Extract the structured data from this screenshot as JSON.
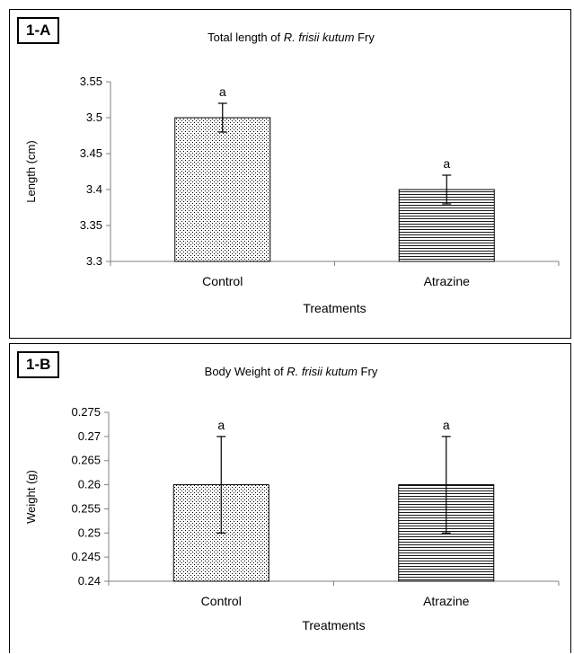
{
  "colors": {
    "background": "#ffffff",
    "axis": "#808080",
    "bar_stroke": "#000000",
    "pattern": "#000000"
  },
  "chart_data": [
    {
      "type": "bar",
      "panel_label": "1-A",
      "title_pre": "Total length of ",
      "title_species": "R. frisii kutum",
      "title_post": " Fry",
      "xlabel": "Treatments",
      "ylabel": "Length (cm)",
      "ylim": [
        3.3,
        3.55
      ],
      "yticks": [
        "3.3",
        "3.35",
        "3.4",
        "3.45",
        "3.5",
        "3.55"
      ],
      "categories": [
        "Control",
        "Atrazine"
      ],
      "values": [
        3.5,
        3.4
      ],
      "errors": [
        0.02,
        0.02
      ],
      "annotations": [
        "a",
        "a"
      ],
      "patterns": [
        "dots",
        "hlines"
      ],
      "grid": false,
      "legend": "none"
    },
    {
      "type": "bar",
      "panel_label": "1-B",
      "title_pre": "Body Weight of ",
      "title_species": "R. frisii kutum",
      "title_post": " Fry",
      "xlabel": "Treatments",
      "ylabel": "Weight (g)",
      "ylim": [
        0.24,
        0.275
      ],
      "yticks": [
        "0.24",
        "0.245",
        "0.25",
        "0.255",
        "0.26",
        "0.265",
        "0.27",
        "0.275"
      ],
      "categories": [
        "Control",
        "Atrazine"
      ],
      "values": [
        0.26,
        0.26
      ],
      "errors": [
        0.01,
        0.01
      ],
      "annotations": [
        "a",
        "a"
      ],
      "patterns": [
        "dots",
        "hlines"
      ],
      "grid": false,
      "legend": "none"
    }
  ]
}
